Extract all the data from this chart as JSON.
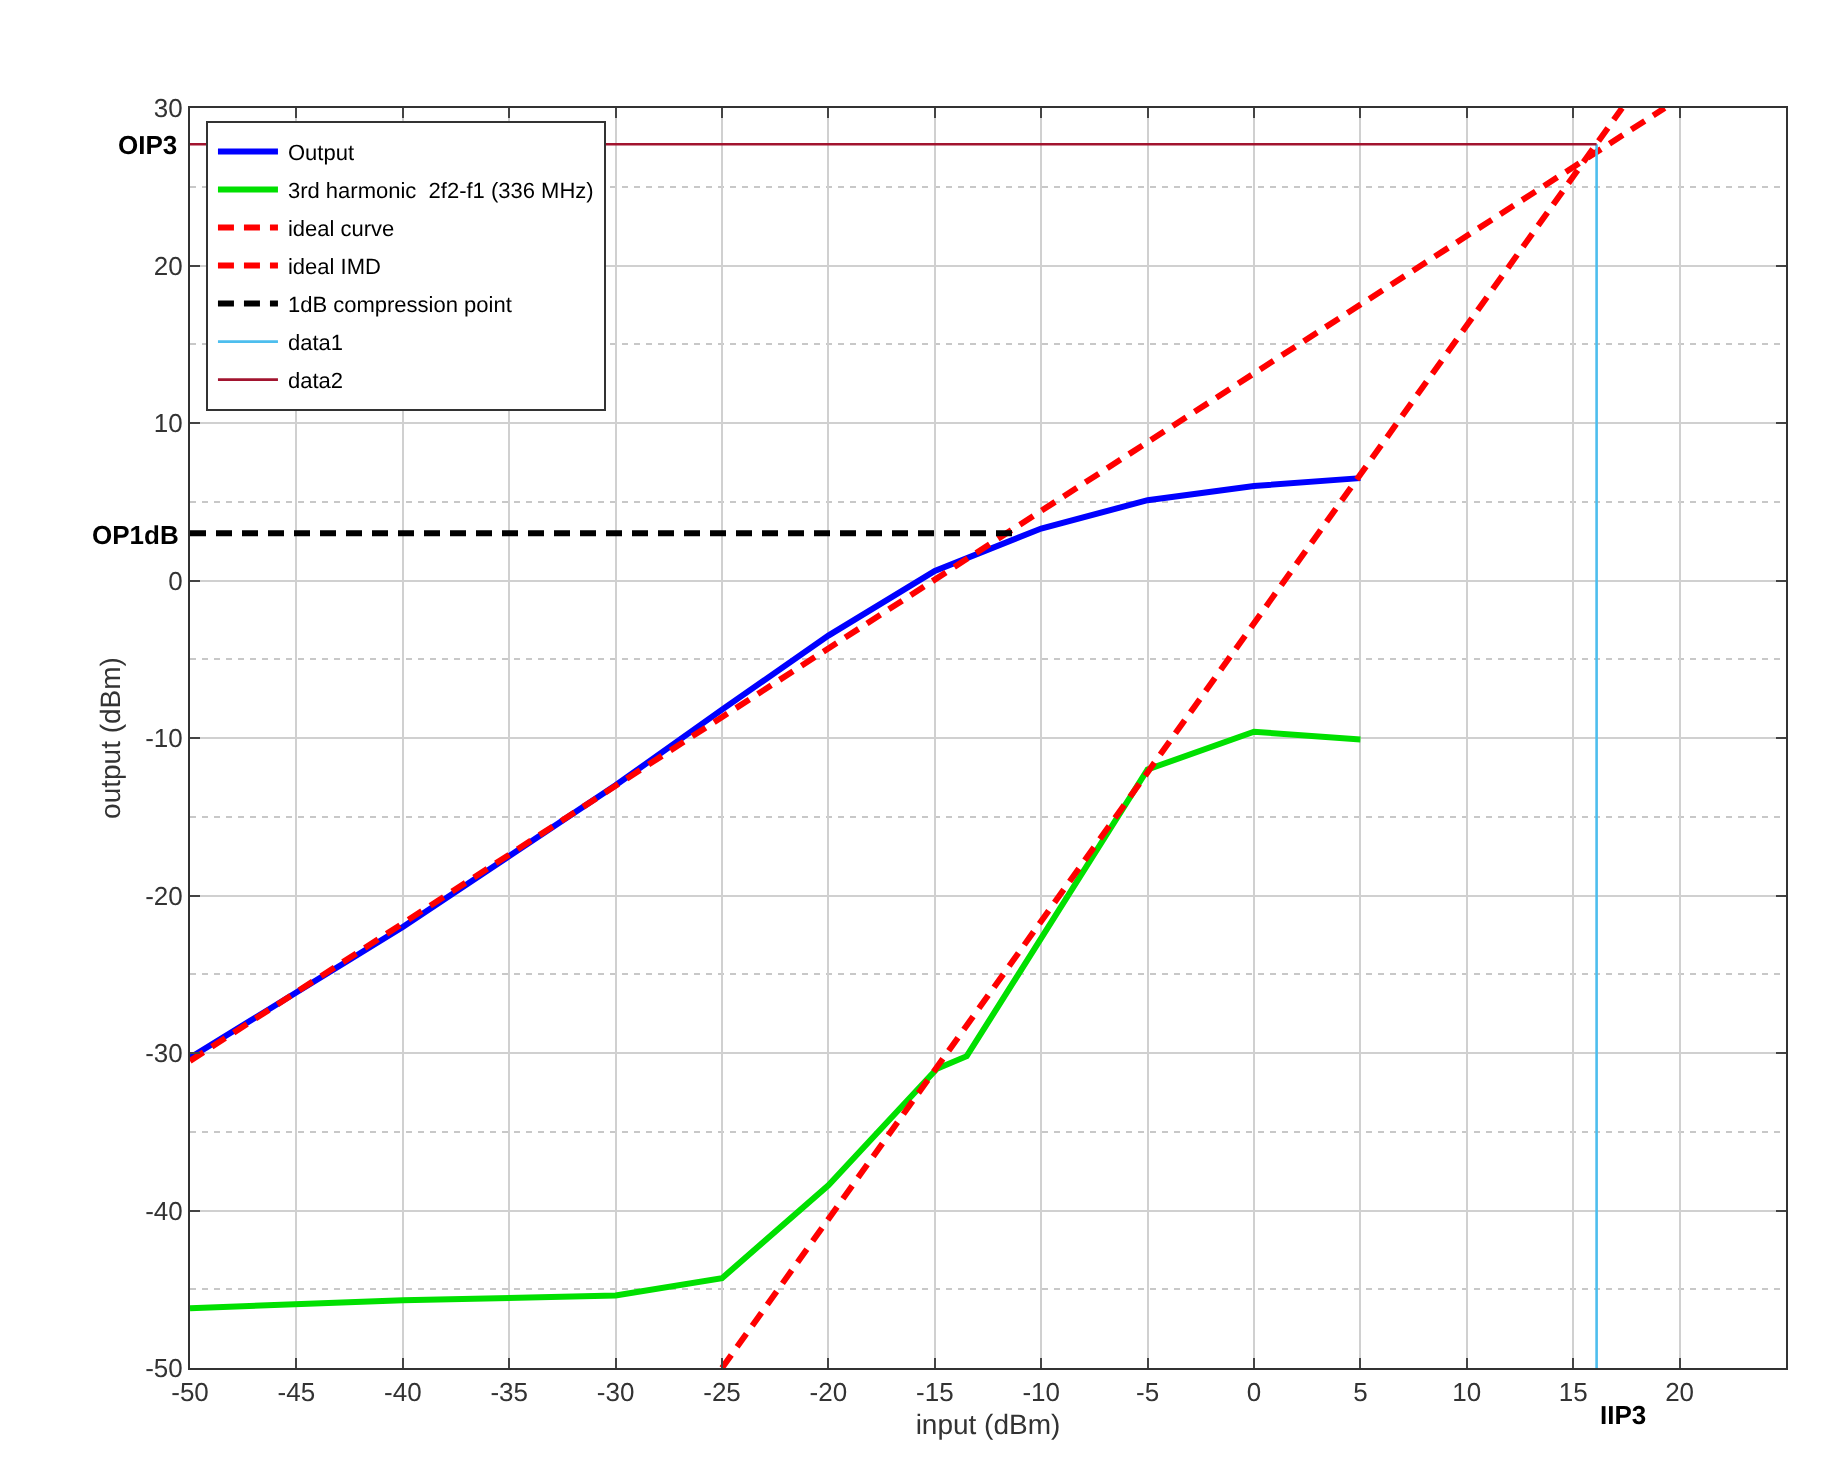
{
  "chart_data": {
    "type": "line",
    "xlabel": "input (dBm)",
    "ylabel": "output (dBm)",
    "xlim": [
      -50,
      25
    ],
    "xticks": [
      -50,
      -45,
      -40,
      -35,
      -30,
      -25,
      -20,
      -15,
      -10,
      -5,
      0,
      5,
      10,
      15,
      20
    ],
    "ylim": [
      -50,
      30
    ],
    "yticks": [
      -50,
      -40,
      -30,
      -20,
      -10,
      0,
      10,
      20,
      30
    ],
    "grid": true,
    "legend": "top left",
    "marker": "none",
    "series": [
      {
        "name": "Output",
        "color": "#0000ff",
        "x": [
          -50,
          -40,
          -30,
          -25,
          -20,
          -15,
          -10,
          -5,
          0,
          5
        ],
        "values": [
          -30.3,
          -22,
          -13,
          -8.2,
          -3.5,
          0.6,
          3.3,
          5.1,
          6,
          6.5
        ]
      },
      {
        "name": "3rd harmonic  2f2-f1 (336 MHz)",
        "color": "#00e000",
        "x": [
          -50,
          -40,
          -30,
          -25,
          -20,
          -14.9,
          -13.5,
          -5,
          0,
          5
        ],
        "values": [
          -46.2,
          -45.7,
          -45.4,
          -44.3,
          -38.4,
          -31,
          -30.2,
          -12,
          -9.6,
          -10.1
        ]
      },
      {
        "name": "ideal curve",
        "color": "#ff0000",
        "line_style": "dashed",
        "x": [
          -50,
          19.3
        ],
        "values": [
          -30.5,
          30
        ]
      },
      {
        "name": "ideal IMD",
        "color": "#ff0000",
        "line_style": "dashed",
        "x": [
          -25,
          17.3
        ],
        "values": [
          -50,
          30
        ]
      },
      {
        "name": "1dB compression point",
        "color": "#000000",
        "line_style": "dashed",
        "x": [
          -50,
          -11.2
        ],
        "values": [
          3,
          3
        ]
      },
      {
        "name": "data1",
        "color": "#4dbeee",
        "x": [
          16.1,
          16.1
        ],
        "values": [
          -50,
          27.7
        ]
      },
      {
        "name": "data2",
        "color": "#a2142f",
        "x": [
          -50,
          16.1
        ],
        "values": [
          27.7,
          27.7
        ]
      }
    ],
    "annotations": [
      "OIP3",
      "OP1dB",
      "IIP3"
    ]
  }
}
